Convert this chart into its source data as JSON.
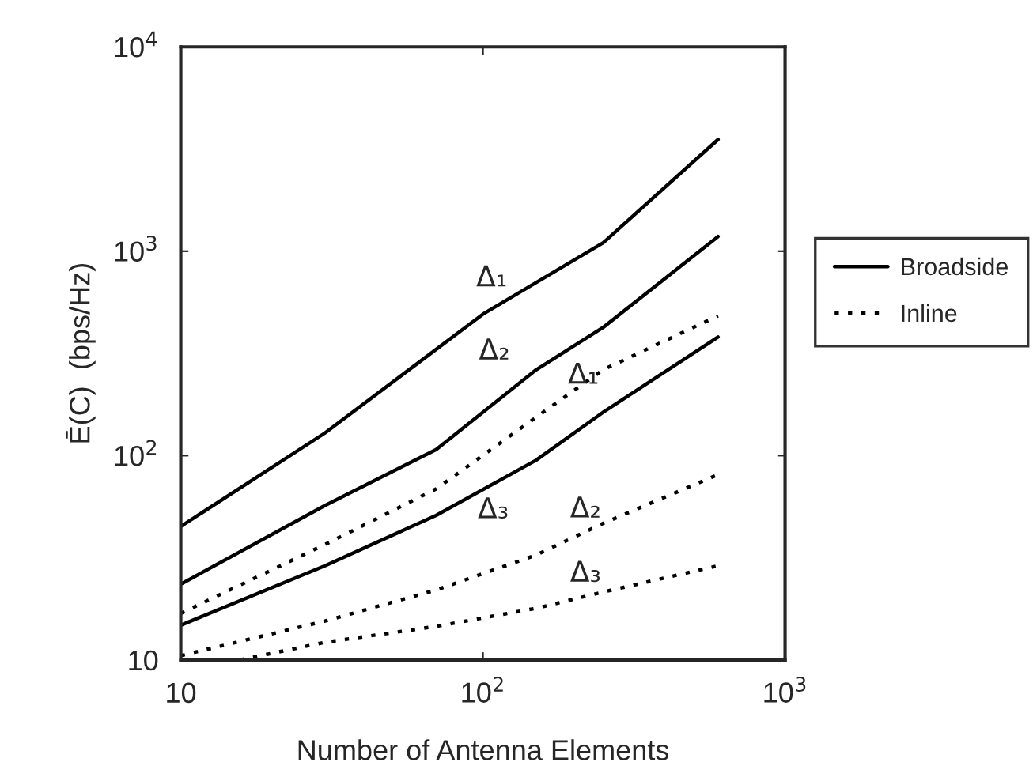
{
  "chart_data": {
    "type": "line",
    "xlabel": "Number of Antenna Elements",
    "ylabel": "Ē(C)  (bps/Hz)",
    "log": "xy",
    "xlim": [
      10,
      1000
    ],
    "ylim": [
      10,
      10000
    ],
    "xticks": [
      10,
      {
        "value": 100,
        "label": "10$^{2}$"
      },
      {
        "value": 1000,
        "label": "10$^{3}$"
      }
    ],
    "yticks": [
      10,
      {
        "value": 100,
        "label": "10$^{2}$"
      },
      {
        "value": 1000,
        "label": "10$^{3}$"
      },
      {
        "value": 10000,
        "label": "10$^{4}$"
      }
    ],
    "grid": false,
    "legend": "right",
    "series": [
      {
        "name": "Broadside",
        "color": "#000000",
        "line_style": "solid",
        "x": [
          10,
          30,
          100,
          250,
          600
        ],
        "values": [
          45,
          129,
          492,
          1100,
          3520
        ]
      },
      {
        "color": "#000000",
        "line_style": "solid",
        "x": [
          10,
          30,
          70,
          150,
          250,
          600
        ],
        "values": [
          23.5,
          57,
          107,
          263,
          424,
          1180
        ]
      },
      {
        "color": "#000000",
        "line_style": "solid",
        "x": [
          10,
          30,
          70,
          150,
          250,
          600
        ],
        "values": [
          14.8,
          28.9,
          51,
          95,
          163,
          380
        ]
      },
      {
        "name": "Inline",
        "color": "#000000",
        "line_style": "dotted",
        "x": [
          10,
          30,
          70,
          150,
          250,
          600
        ],
        "values": [
          16.9,
          36.7,
          68.7,
          154,
          263,
          483
        ]
      },
      {
        "color": "#000000",
        "line_style": "dotted",
        "x": [
          10,
          30,
          70,
          150,
          250,
          600
        ],
        "values": [
          10.5,
          15.5,
          22,
          32.6,
          46.6,
          80.7
        ]
      },
      {
        "color": "#000000",
        "line_style": "dotted",
        "x": [
          15.7,
          30,
          70,
          150,
          250,
          600
        ],
        "values": [
          10,
          12.2,
          14.6,
          17.9,
          21.5,
          28.9
        ]
      }
    ],
    "annotations": [
      {
        "text": "Δ₁",
        "x": 100,
        "y": 492
      },
      {
        "text": "Δ₂",
        "x": 150,
        "y": 263
      },
      {
        "text": "Δ₃",
        "x": 70,
        "y": 51
      },
      {
        "text": "Δ₁",
        "x": 250,
        "y": 263
      },
      {
        "text": "Δ₂",
        "x": 250,
        "y": 46.6
      },
      {
        "text": "Δ₃",
        "x": 250,
        "y": 21.5
      }
    ]
  }
}
